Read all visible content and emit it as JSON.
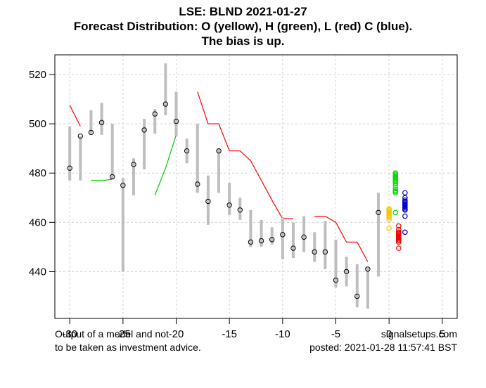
{
  "chart_data": {
    "type": "line",
    "title": "LSE: BLND 2021-01-27",
    "subtitle_lines": [
      "Forecast Distribution: O (yellow), H (green), L (red) C (blue).",
      "The bias is up."
    ],
    "xlabel": "",
    "ylabel": "",
    "xlim": [
      -31.4,
      6.4
    ],
    "ylim": [
      421,
      528
    ],
    "x_ticks": [
      -30,
      -25,
      -20,
      -15,
      -10,
      -5,
      0,
      5
    ],
    "y_ticks": [
      440,
      460,
      480,
      500,
      520
    ],
    "grid": true,
    "bars": [
      {
        "x": -30,
        "low": 477,
        "high": 499,
        "close": 482
      },
      {
        "x": -29,
        "low": 477,
        "high": 495,
        "close": 495
      },
      {
        "x": -28,
        "low": 496,
        "high": 505.5,
        "close": 496.5
      },
      {
        "x": -27,
        "low": 495.5,
        "high": 508.5,
        "close": 500.5
      },
      {
        "x": -26,
        "low": 477.5,
        "high": 500,
        "close": 478.5
      },
      {
        "x": -25,
        "low": 440,
        "high": 478,
        "close": 475
      },
      {
        "x": -24,
        "low": 471,
        "high": 486,
        "close": 483.5
      },
      {
        "x": -23,
        "low": 481.5,
        "high": 502,
        "close": 497.5
      },
      {
        "x": -22,
        "low": 496,
        "high": 506,
        "close": 504
      },
      {
        "x": -21,
        "low": 503.5,
        "high": 524.5,
        "close": 508
      },
      {
        "x": -20,
        "low": 495,
        "high": 513,
        "close": 501
      },
      {
        "x": -19,
        "low": 484,
        "high": 494,
        "close": 489
      },
      {
        "x": -18,
        "low": 472,
        "high": 500,
        "close": 475.5
      },
      {
        "x": -17,
        "low": 459,
        "high": 479,
        "close": 468.5
      },
      {
        "x": -16,
        "low": 472,
        "high": 490,
        "close": 489
      },
      {
        "x": -15,
        "low": 463,
        "high": 476,
        "close": 467
      },
      {
        "x": -14,
        "low": 461,
        "high": 470,
        "close": 465
      },
      {
        "x": -13,
        "low": 450,
        "high": 465,
        "close": 452
      },
      {
        "x": -12,
        "low": 450,
        "high": 461,
        "close": 452.5
      },
      {
        "x": -11,
        "low": 451,
        "high": 458,
        "close": 453
      },
      {
        "x": -10,
        "low": 445,
        "high": 462,
        "close": 455
      },
      {
        "x": -9,
        "low": 445.5,
        "high": 460,
        "close": 449.5
      },
      {
        "x": -8,
        "low": 448,
        "high": 462.5,
        "close": 454
      },
      {
        "x": -7,
        "low": 444,
        "high": 456,
        "close": 448
      },
      {
        "x": -6,
        "low": 441,
        "high": 460.5,
        "close": 448
      },
      {
        "x": -5,
        "low": 433.5,
        "high": 453,
        "close": 436.5
      },
      {
        "x": -4,
        "low": 434,
        "high": 446,
        "close": 440
      },
      {
        "x": -3,
        "low": 425.5,
        "high": 443,
        "close": 430
      },
      {
        "x": -2,
        "low": 425,
        "high": 441.5,
        "close": 441
      },
      {
        "x": -1,
        "low": 438,
        "high": 472,
        "close": 464
      }
    ],
    "series": [
      {
        "name": "upper band",
        "color": "#ff0000",
        "segments": [
          [
            [
              -30,
              507.5
            ],
            [
              -29,
              499
            ]
          ],
          [
            [
              -18,
              513
            ],
            [
              -17,
              500
            ],
            [
              -16.5,
              500
            ],
            [
              -16,
              500
            ],
            [
              -15,
              489
            ],
            [
              -14,
              489
            ],
            [
              -13,
              485
            ],
            [
              -12,
              477
            ],
            [
              -11,
              469
            ],
            [
              -10,
              461.5
            ],
            [
              -9,
              461.5
            ]
          ],
          [
            [
              -7,
              462.5
            ],
            [
              -6,
              462.5
            ],
            [
              -5,
              460
            ],
            [
              -4,
              452
            ],
            [
              -3,
              452
            ],
            [
              -2,
              444
            ]
          ]
        ]
      },
      {
        "name": "lower band",
        "color": "#00cc00",
        "segments": [
          [
            [
              -28,
              477
            ],
            [
              -26.8,
              477
            ],
            [
              -26,
              477.5
            ]
          ],
          [
            [
              -22,
              471
            ],
            [
              -21,
              482
            ],
            [
              -20,
              495.5
            ]
          ]
        ]
      }
    ],
    "forecast": {
      "open": {
        "color": "#f0c800",
        "x": 0,
        "values": [
          465.5,
          465,
          464.5,
          464,
          463.5,
          463,
          462.5,
          462,
          461,
          457.5
        ]
      },
      "high": {
        "color": "#00dd00",
        "x": 0.6,
        "values": [
          480,
          479.5,
          479,
          478.5,
          478,
          477.5,
          477,
          476.5,
          476,
          475,
          474,
          473,
          472.5,
          472,
          464
        ]
      },
      "low": {
        "color": "#ee0000",
        "x": 0.9,
        "values": [
          458.5,
          457,
          456,
          455.5,
          455,
          454.5,
          454,
          453.5,
          453,
          452.5,
          452,
          449.5
        ]
      },
      "close": {
        "color": "#0000cc",
        "x": 1.5,
        "values": [
          472,
          470,
          469,
          468.5,
          468,
          467.5,
          467,
          466.5,
          466,
          465.5,
          465,
          462.5,
          456
        ]
      }
    }
  },
  "footer": {
    "left_line1": "Output of a model and not",
    "left_line2": "to be taken as investment advice.",
    "right_line1": "signalsetups.com",
    "right_line2": "posted: 2021-01-28 11:57:41 BST"
  }
}
